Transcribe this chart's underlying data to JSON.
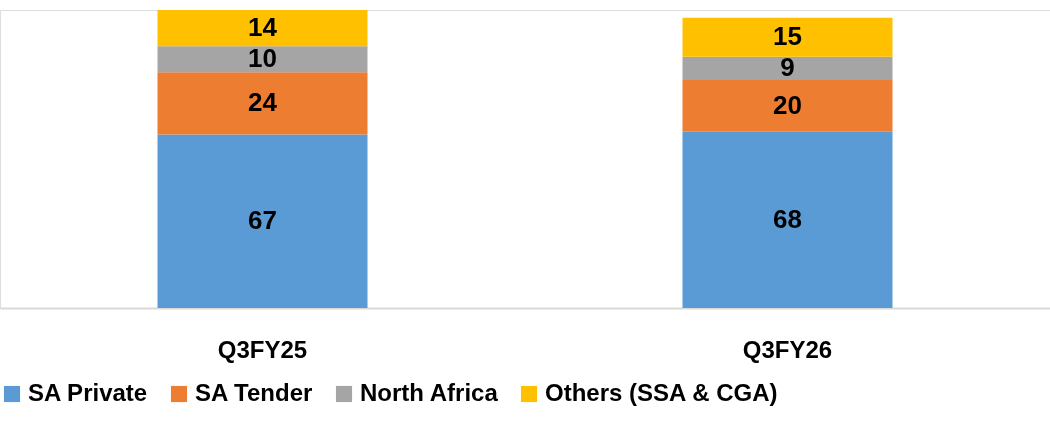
{
  "chart_data": {
    "type": "bar",
    "stacked": true,
    "data_labels": true,
    "legend": "bottom",
    "grid": false,
    "categories": [
      "Q3FY25",
      "Q3FY26"
    ],
    "series": [
      {
        "name": "SA Private",
        "color": "#5b9bd5",
        "values": [
          67,
          68
        ]
      },
      {
        "name": "SA Tender",
        "color": "#ed7d31",
        "values": [
          24,
          20
        ]
      },
      {
        "name": "North Africa",
        "color": "#a5a5a5",
        "values": [
          10,
          9
        ]
      },
      {
        "name": "Others (SSA & CGA)",
        "color": "#ffc000",
        "values": [
          14,
          15
        ]
      }
    ]
  }
}
